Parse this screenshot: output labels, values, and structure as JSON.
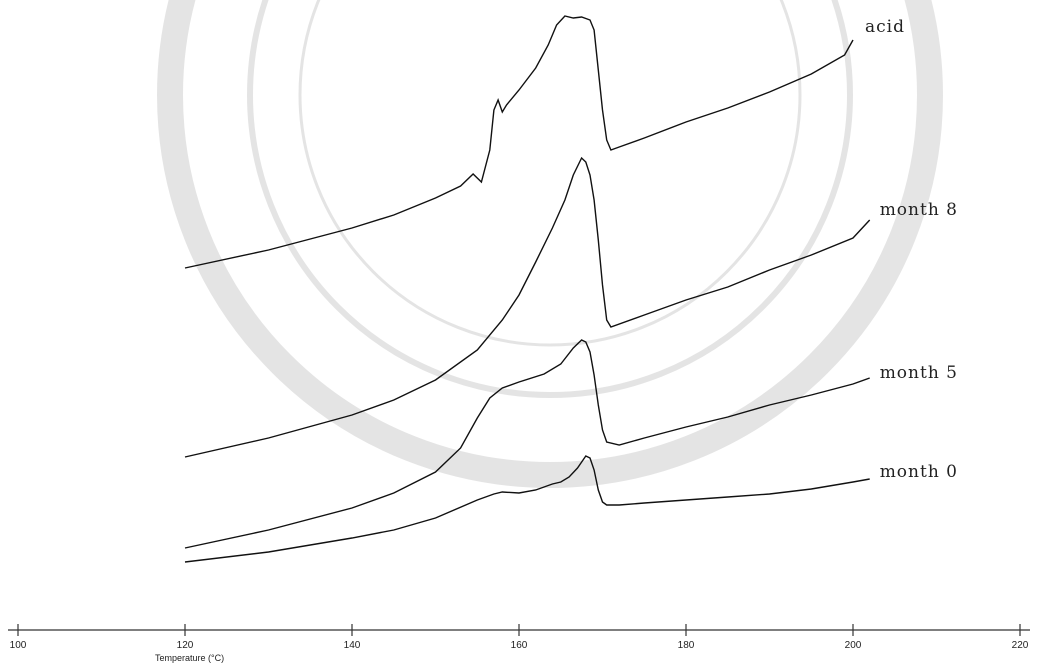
{
  "chart_data": {
    "type": "line",
    "xlabel": "Temperature (°C)",
    "ylabel": "",
    "title": "",
    "xlim": [
      100,
      220
    ],
    "x_ticks": [
      "100",
      "120",
      "140",
      "160",
      "180",
      "200",
      "220"
    ],
    "grid": false,
    "legend": "labels at right end of each curve",
    "series": [
      {
        "name": "acid",
        "points": [
          [
            120,
            268
          ],
          [
            130,
            250
          ],
          [
            140,
            228
          ],
          [
            145,
            215
          ],
          [
            150,
            198
          ],
          [
            153,
            186
          ],
          [
            154.5,
            174
          ],
          [
            155.5,
            182
          ],
          [
            156.5,
            150
          ],
          [
            157,
            110
          ],
          [
            157.5,
            100
          ],
          [
            158,
            112
          ],
          [
            158.5,
            105
          ],
          [
            160,
            90
          ],
          [
            162,
            68
          ],
          [
            163.5,
            45
          ],
          [
            164.5,
            25
          ],
          [
            165.5,
            16
          ],
          [
            166.5,
            18
          ],
          [
            167.5,
            17
          ],
          [
            168.5,
            20
          ],
          [
            169,
            30
          ],
          [
            169.5,
            70
          ],
          [
            170,
            110
          ],
          [
            170.5,
            140
          ],
          [
            171,
            150
          ],
          [
            172,
            147
          ],
          [
            175,
            138
          ],
          [
            180,
            122
          ],
          [
            185,
            108
          ],
          [
            190,
            92
          ],
          [
            195,
            74
          ],
          [
            199,
            55
          ],
          [
            200,
            40
          ]
        ]
      },
      {
        "name": "month 8",
        "points": [
          [
            120,
            457
          ],
          [
            130,
            438
          ],
          [
            140,
            415
          ],
          [
            145,
            400
          ],
          [
            150,
            380
          ],
          [
            155,
            350
          ],
          [
            158,
            320
          ],
          [
            160,
            295
          ],
          [
            162,
            262
          ],
          [
            164,
            228
          ],
          [
            165.5,
            200
          ],
          [
            166.5,
            175
          ],
          [
            167.5,
            158
          ],
          [
            168,
            162
          ],
          [
            168.5,
            175
          ],
          [
            169,
            200
          ],
          [
            169.5,
            240
          ],
          [
            170,
            285
          ],
          [
            170.5,
            320
          ],
          [
            171,
            327
          ],
          [
            175,
            315
          ],
          [
            180,
            300
          ],
          [
            185,
            287
          ],
          [
            190,
            270
          ],
          [
            195,
            255
          ],
          [
            200,
            238
          ],
          [
            202,
            220
          ]
        ]
      },
      {
        "name": "month 5",
        "points": [
          [
            120,
            548
          ],
          [
            130,
            530
          ],
          [
            140,
            508
          ],
          [
            145,
            493
          ],
          [
            150,
            472
          ],
          [
            153,
            448
          ],
          [
            155,
            418
          ],
          [
            156.5,
            398
          ],
          [
            158,
            388
          ],
          [
            160,
            382
          ],
          [
            163,
            374
          ],
          [
            165,
            364
          ],
          [
            166.5,
            348
          ],
          [
            167.5,
            340
          ],
          [
            168,
            342
          ],
          [
            168.5,
            352
          ],
          [
            169,
            375
          ],
          [
            169.5,
            405
          ],
          [
            170,
            430
          ],
          [
            170.5,
            442
          ],
          [
            172,
            445
          ],
          [
            175,
            438
          ],
          [
            180,
            427
          ],
          [
            185,
            417
          ],
          [
            190,
            405
          ],
          [
            195,
            395
          ],
          [
            200,
            384
          ],
          [
            202,
            378
          ]
        ]
      },
      {
        "name": "month 0",
        "points": [
          [
            120,
            562
          ],
          [
            130,
            552
          ],
          [
            140,
            538
          ],
          [
            145,
            530
          ],
          [
            150,
            518
          ],
          [
            155,
            500
          ],
          [
            157,
            494
          ],
          [
            158,
            492
          ],
          [
            160,
            493
          ],
          [
            162,
            490
          ],
          [
            164,
            484
          ],
          [
            165,
            482
          ],
          [
            166,
            477
          ],
          [
            167,
            468
          ],
          [
            168,
            456
          ],
          [
            168.5,
            458
          ],
          [
            169,
            470
          ],
          [
            169.5,
            490
          ],
          [
            170,
            502
          ],
          [
            170.5,
            505
          ],
          [
            172,
            505
          ],
          [
            175,
            503
          ],
          [
            180,
            500
          ],
          [
            185,
            497
          ],
          [
            190,
            494
          ],
          [
            195,
            489
          ],
          [
            200,
            482
          ],
          [
            202,
            479
          ]
        ]
      }
    ]
  }
}
